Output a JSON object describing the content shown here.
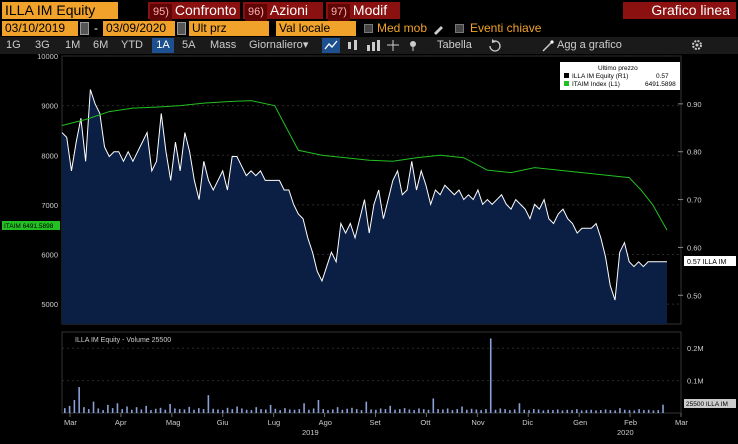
{
  "header": {
    "ticker": "ILLA IM Equity",
    "buttons": [
      {
        "num": "95)",
        "label": "Confronto"
      },
      {
        "num": "96)",
        "label": "Azioni"
      },
      {
        "num": "97)",
        "label": "Modif"
      }
    ],
    "title": "Grafico linea"
  },
  "controls": {
    "start_date": "03/10/2019",
    "end_date": "03/09/2020",
    "separator": "-",
    "field": "Ult prz",
    "currency": "Val locale",
    "moving_avg": "Med mob",
    "key_events": "Eventi chiave"
  },
  "tabs": [
    {
      "label": "1G",
      "selected": false
    },
    {
      "label": "3G",
      "selected": false
    },
    {
      "label": "1M",
      "selected": false
    },
    {
      "label": "6M",
      "selected": false
    },
    {
      "label": "YTD",
      "selected": false
    },
    {
      "label": "1A",
      "selected": true
    },
    {
      "label": "5A",
      "selected": false
    },
    {
      "label": "Mass",
      "selected": false
    },
    {
      "label": "Giornaliero",
      "selected": false
    },
    {
      "label": "Tabella",
      "selected": false
    },
    {
      "label": "Agg a grafico",
      "selected": false
    }
  ],
  "colors": {
    "accent": "#f0a22b",
    "title_bg": "#8b1010",
    "price_line": "#ffffff",
    "index_line": "#22c022",
    "area_fill": "#0b1f45",
    "tab_selected": "#1e4f8f"
  },
  "chart_data": [
    {
      "type": "line",
      "legend_title": "Ultimo prezzo",
      "series": [
        {
          "name": "ILLA IM Equity (R1)",
          "last": "0.57",
          "axis": "right",
          "x": [
            0,
            2,
            4,
            6,
            8,
            10,
            12,
            14,
            16,
            18,
            20,
            22,
            24,
            26,
            28,
            30,
            32,
            34,
            36,
            38,
            40,
            42,
            44,
            46,
            48,
            50,
            52,
            54,
            56,
            58,
            60,
            62,
            64,
            66,
            68,
            70,
            72,
            74,
            76,
            78,
            80,
            82,
            84,
            86,
            88,
            90,
            92,
            94,
            96,
            98,
            100,
            102,
            104,
            106,
            108,
            110,
            112,
            114,
            116,
            118,
            120,
            122,
            124,
            126,
            128,
            130,
            132,
            134,
            136,
            138,
            140,
            142,
            144,
            146,
            148,
            150,
            152,
            154,
            156,
            158,
            160,
            162,
            164,
            166,
            168,
            170,
            172,
            174,
            176,
            178,
            180,
            182,
            184,
            186,
            188,
            190,
            192,
            194,
            196,
            198,
            200,
            202,
            204,
            206,
            208,
            210,
            212,
            214,
            216,
            218,
            220,
            222,
            224,
            226,
            228,
            230,
            232,
            234,
            236,
            238,
            240,
            242,
            244,
            246,
            248,
            250,
            252,
            254,
            256
          ],
          "values": [
            0.84,
            0.83,
            0.76,
            0.82,
            0.87,
            0.78,
            0.93,
            0.9,
            0.88,
            0.81,
            0.79,
            0.8,
            0.8,
            0.78,
            0.8,
            0.78,
            0.8,
            0.82,
            0.84,
            0.76,
            0.78,
            0.88,
            0.8,
            0.74,
            0.82,
            0.76,
            0.84,
            0.8,
            0.74,
            0.7,
            0.78,
            0.74,
            0.72,
            0.74,
            0.76,
            0.72,
            0.79,
            0.79,
            0.77,
            0.75,
            0.76,
            0.75,
            0.76,
            0.74,
            0.74,
            0.74,
            0.74,
            0.72,
            0.72,
            0.69,
            0.67,
            0.66,
            0.62,
            0.59,
            0.55,
            0.53,
            0.56,
            0.59,
            0.57,
            0.65,
            0.63,
            0.65,
            0.62,
            0.66,
            0.7,
            0.63,
            0.69,
            0.72,
            0.66,
            0.7,
            0.74,
            0.76,
            0.71,
            0.72,
            0.78,
            0.72,
            0.76,
            0.73,
            0.69,
            0.72,
            0.71,
            0.73,
            0.72,
            0.71,
            0.72,
            0.7,
            0.71,
            0.7,
            0.72,
            0.69,
            0.7,
            0.69,
            0.7,
            0.71,
            0.69,
            0.68,
            0.7,
            0.69,
            0.68,
            0.66,
            0.69,
            0.68,
            0.7,
            0.66,
            0.65,
            0.67,
            0.68,
            0.66,
            0.65,
            0.63,
            0.64,
            0.64,
            0.64,
            0.65,
            0.62,
            0.58,
            0.52,
            0.49,
            0.59,
            0.61,
            0.57,
            0.56,
            0.57,
            0.56,
            0.57,
            0.57,
            0.57,
            0.57,
            0.57
          ]
        },
        {
          "name": "ITAIM Index (L1)",
          "last": "6491.5898",
          "axis": "left",
          "x": [
            0,
            10,
            20,
            30,
            40,
            50,
            60,
            70,
            80,
            90,
            100,
            110,
            120,
            130,
            140,
            150,
            160,
            170,
            180,
            190,
            200,
            210,
            220,
            230,
            240,
            245,
            250,
            256
          ],
          "values": [
            8600,
            8720,
            8880,
            8950,
            8970,
            9000,
            9050,
            9080,
            9100,
            9000,
            8100,
            8000,
            7950,
            7900,
            7880,
            7950,
            8000,
            7950,
            7700,
            7650,
            7750,
            7700,
            7650,
            7600,
            7550,
            7300,
            7000,
            6492
          ]
        }
      ],
      "ylim_left": [
        4600,
        10000
      ],
      "ylim_right": [
        0.44,
        1.0
      ],
      "left_ticks": [
        "5000",
        "6000",
        "7000",
        "8000",
        "9000",
        "10000"
      ],
      "right_ticks": [
        "0.50",
        "0.60",
        "0.70",
        "0.80",
        "0.90"
      ],
      "left_label": "ITAIM 6491.5898",
      "right_label": "0.57 ILLA IM",
      "x_ticks": [
        "Mar",
        "Apr",
        "Mag",
        "Giu",
        "Lug",
        "Ago",
        "Set",
        "Ott",
        "Nov",
        "Dic",
        "Gen",
        "Feb",
        "Mar"
      ],
      "x_years": [
        "2019",
        "2020"
      ]
    },
    {
      "type": "bar",
      "legend": "ILLA IM Equity - Volume 25500",
      "volume_label": "25500 ILLA IM",
      "right_ticks": [
        "0.1M",
        "0.2M"
      ],
      "ylim": [
        0,
        250000
      ],
      "values": [
        15000,
        22000,
        40000,
        80000,
        18000,
        12000,
        35000,
        14000,
        9000,
        25000,
        15000,
        30000,
        12000,
        20000,
        10000,
        18000,
        11000,
        22000,
        9000,
        13000,
        16000,
        10000,
        28000,
        14000,
        12000,
        11000,
        19000,
        10000,
        15000,
        12000,
        55000,
        13000,
        11000,
        9000,
        16000,
        12000,
        20000,
        14000,
        10000,
        9000,
        18000,
        12000,
        11000,
        25000,
        13000,
        9000,
        15000,
        11000,
        10000,
        12000,
        30000,
        10000,
        14000,
        40000,
        12000,
        9000,
        11000,
        18000,
        10000,
        13000,
        16000,
        12000,
        9000,
        35000,
        11000,
        10000,
        14000,
        12000,
        22000,
        10000,
        12000,
        15000,
        11000,
        9000,
        14000,
        12000,
        10000,
        45000,
        12000,
        11000,
        14000,
        9000,
        12000,
        20000,
        10000,
        13000,
        11000,
        9000,
        12000,
        230000,
        10000,
        14000,
        12000,
        9000,
        11000,
        30000,
        10000,
        9000,
        12000,
        11000,
        8000,
        10000,
        9000,
        11000,
        8000,
        10000,
        9000,
        12000,
        8000,
        9000,
        10000,
        8000,
        9000,
        11000,
        9000,
        8000,
        15000,
        10000,
        9000,
        8000,
        12000,
        9000,
        10000,
        8000,
        9000,
        25500
      ]
    }
  ]
}
